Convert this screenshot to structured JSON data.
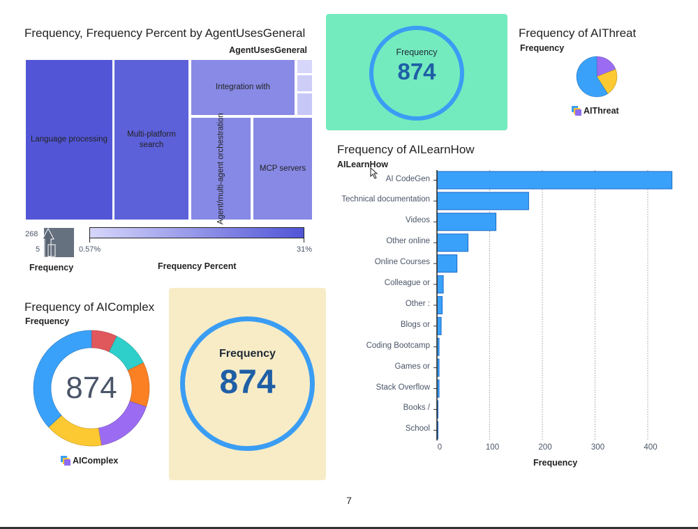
{
  "page": {
    "number": "7"
  },
  "chart_data": [
    {
      "type": "treemap",
      "title": "Frequency, Frequency Percent by AgentUsesGeneral",
      "group_label": "AgentUsesGeneral",
      "categories": [
        "Language processing",
        "Multi-platform search",
        "Integration with",
        "Agent/multi-agent orchestration",
        "MCP servers",
        "",
        "",
        ""
      ],
      "values": [
        268,
        231,
        115,
        118,
        117,
        5,
        8,
        12
      ],
      "size_legend": {
        "title": "Frequency",
        "max": "268",
        "min": "5"
      },
      "color_legend": {
        "title": "Frequency Percent",
        "min": "0.57%",
        "max": "31%",
        "color_low": "#d6d6fb",
        "color_high": "#5155d6"
      }
    },
    {
      "type": "kpi",
      "label": "Frequency",
      "value": "874",
      "background": "#73ebbf"
    },
    {
      "type": "pie",
      "title": "Frequency of AIThreat",
      "measure_label": "Frequency",
      "legend": "AIThreat",
      "slices": [
        {
          "value": 166,
          "color": "#9b6cf2"
        },
        {
          "value": 192,
          "color": "#fcc932"
        },
        {
          "value": 516,
          "color": "#3aa1fa"
        }
      ]
    },
    {
      "type": "bar",
      "orientation": "horizontal",
      "title": "Frequency of AILearnHow",
      "ylabel": "AILearnHow",
      "xlabel": "Frequency",
      "categories": [
        "AI CodeGen",
        "Technical documentation",
        "Videos",
        "Other online",
        "Online Courses",
        "Colleague or",
        "Other :",
        "Blogs or",
        "Coding Bootcamp",
        "Games or",
        "Stack Overflow",
        "Books /",
        "School"
      ],
      "values": [
        446,
        174,
        112,
        59,
        38,
        12,
        10,
        8,
        4,
        4,
        4,
        2,
        1
      ],
      "xticks": [
        0,
        100,
        200,
        300,
        400
      ],
      "xlim": [
        0,
        450
      ],
      "grid": true,
      "color": "#3aa1fa"
    },
    {
      "type": "pie",
      "subtype": "donut",
      "title": "Frequency of AIComplex",
      "measure_label": "Frequency",
      "center_value": "874",
      "legend": "AIComplex",
      "slices": [
        {
          "value": 63,
          "color": "#e0575c"
        },
        {
          "value": 92,
          "color": "#2ecfcb"
        },
        {
          "value": 109,
          "color": "#fb8024"
        },
        {
          "value": 149,
          "color": "#9b6cf2"
        },
        {
          "value": 140,
          "color": "#fcc932"
        },
        {
          "value": 321,
          "color": "#3aa1fa"
        }
      ]
    },
    {
      "type": "kpi",
      "label": "Frequency",
      "value": "874",
      "background": "#f8ecc7"
    }
  ]
}
